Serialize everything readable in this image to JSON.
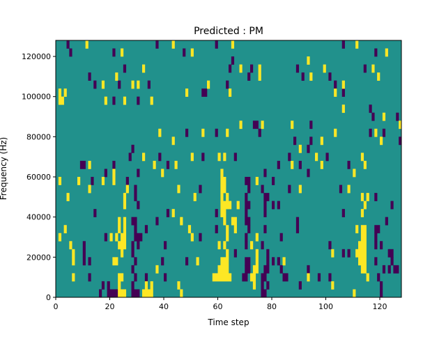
{
  "chart_data": {
    "type": "heatmap",
    "title": "Predicted : PM",
    "xlabel": "Time step",
    "ylabel": "Frequency (Hz)",
    "xlim": [
      0,
      128
    ],
    "ylim": [
      0,
      128000
    ],
    "x_ticks": [
      0,
      20,
      40,
      60,
      80,
      100,
      120
    ],
    "y_ticks": [
      0,
      20000,
      40000,
      60000,
      80000,
      100000,
      120000
    ],
    "y_tick_labels": [
      "0",
      "20000",
      "40000",
      "60000",
      "80000",
      "100000",
      "120000"
    ],
    "n_time_steps": 128,
    "n_freq_bins": 32,
    "freq_bin_hz": 4000,
    "colors": {
      "low": "#440154",
      "mid": "#21918c",
      "high": "#fde725"
    },
    "default_level": "mid",
    "note": "cells listed per frequency bin (row 0 = lowest) as [first_step, last_step] runs",
    "low_cells": [
      [
        [
          16,
          16
        ],
        [
          19,
          22
        ],
        [
          28,
          30
        ],
        [
          76,
          77
        ],
        [
          120,
          120
        ]
      ],
      [
        [
          17,
          17
        ],
        [
          19,
          19
        ],
        [
          28,
          28
        ],
        [
          76,
          76
        ],
        [
          78,
          78
        ],
        [
          90,
          90
        ],
        [
          120,
          120
        ]
      ],
      [
        [
          12,
          12
        ],
        [
          29,
          29
        ],
        [
          33,
          33
        ],
        [
          40,
          40
        ],
        [
          69,
          70
        ],
        [
          76,
          77
        ],
        [
          84,
          85
        ],
        [
          97,
          97
        ],
        [
          101,
          101
        ],
        [
          119,
          119
        ]
      ],
      [
        [
          28,
          28
        ],
        [
          70,
          71
        ],
        [
          77,
          78
        ],
        [
          83,
          83
        ],
        [
          93,
          93
        ],
        [
          121,
          121
        ],
        [
          123,
          123
        ],
        [
          125,
          126
        ]
      ],
      [
        [
          10,
          10
        ],
        [
          12,
          12
        ],
        [
          29,
          29
        ],
        [
          39,
          39
        ],
        [
          48,
          48
        ],
        [
          70,
          71
        ],
        [
          78,
          78
        ],
        [
          80,
          80
        ],
        [
          82,
          82
        ],
        [
          118,
          118
        ],
        [
          124,
          124
        ]
      ],
      [
        [
          10,
          10
        ],
        [
          28,
          28
        ],
        [
          66,
          66
        ],
        [
          78,
          78
        ],
        [
          106,
          106
        ],
        [
          108,
          108
        ],
        [
          123,
          124
        ]
      ],
      [
        [
          10,
          10
        ],
        [
          28,
          28
        ],
        [
          30,
          30
        ],
        [
          40,
          40
        ],
        [
          70,
          70
        ],
        [
          76,
          76
        ],
        [
          101,
          101
        ],
        [
          118,
          118
        ],
        [
          120,
          120
        ]
      ],
      [
        [
          18,
          18
        ],
        [
          29,
          31
        ],
        [
          53,
          53
        ],
        [
          70,
          70
        ],
        [
          83,
          83
        ],
        [
          118,
          118
        ]
      ],
      [
        [
          29,
          29
        ],
        [
          33,
          33
        ],
        [
          59,
          59
        ],
        [
          71,
          71
        ],
        [
          77,
          77
        ],
        [
          89,
          89
        ],
        [
          118,
          119
        ]
      ],
      [
        [
          28,
          29
        ],
        [
          37,
          37
        ],
        [
          70,
          71
        ],
        [
          89,
          89
        ],
        [
          122,
          122
        ]
      ],
      [
        [
          14,
          14
        ],
        [
          41,
          41
        ],
        [
          59,
          59
        ],
        [
          70,
          70
        ],
        [
          77,
          77
        ],
        [
          106,
          106
        ]
      ],
      [
        [
          30,
          30
        ],
        [
          70,
          71
        ],
        [
          77,
          77
        ],
        [
          80,
          80
        ],
        [
          82,
          82
        ],
        [
          124,
          124
        ]
      ],
      [
        [
          29,
          29
        ],
        [
          70,
          70
        ],
        [
          77,
          78
        ],
        [
          118,
          118
        ]
      ],
      [
        [
          29,
          29
        ],
        [
          53,
          53
        ],
        [
          71,
          71
        ],
        [
          76,
          76
        ],
        [
          86,
          86
        ],
        [
          105,
          105
        ]
      ],
      [
        [
          13,
          13
        ],
        [
          26,
          26
        ],
        [
          70,
          71
        ],
        [
          80,
          80
        ]
      ],
      [
        [
          18,
          18
        ],
        [
          30,
          30
        ],
        [
          77,
          77
        ],
        [
          93,
          93
        ]
      ],
      [
        [
          9,
          10
        ],
        [
          21,
          21
        ],
        [
          41,
          41
        ],
        [
          82,
          82
        ],
        [
          90,
          90
        ],
        [
          108,
          108
        ]
      ],
      [
        [
          27,
          27
        ],
        [
          38,
          38
        ],
        [
          54,
          54
        ],
        [
          66,
          66
        ],
        [
          86,
          86
        ],
        [
          100,
          100
        ]
      ],
      [
        [
          28,
          28
        ],
        [
          93,
          93
        ]
      ],
      [
        [
          88,
          88
        ],
        [
          94,
          94
        ],
        [
          127,
          127
        ]
      ],
      [
        [
          48,
          48
        ],
        [
          59,
          59
        ],
        [
          75,
          75
        ],
        [
          116,
          116
        ],
        [
          121,
          121
        ]
      ],
      [
        [
          73,
          74
        ],
        [
          94,
          94
        ]
      ],
      [
        [
          117,
          117
        ],
        [
          126,
          126
        ]
      ],
      [
        [
          116,
          116
        ]
      ],
      [
        [
          21,
          21
        ],
        [
          30,
          30
        ]
      ],
      [
        [
          54,
          55
        ],
        [
          106,
          106
        ]
      ],
      [
        [
          14,
          14
        ],
        [
          23,
          23
        ],
        [
          34,
          34
        ],
        [
          63,
          63
        ],
        [
          103,
          103
        ]
      ],
      [
        [
          12,
          12
        ],
        [
          71,
          71
        ],
        [
          91,
          91
        ],
        [
          101,
          101
        ]
      ],
      [
        [
          25,
          25
        ],
        [
          64,
          64
        ],
        [
          72,
          72
        ],
        [
          89,
          89
        ],
        [
          114,
          114
        ]
      ],
      [
        [
          65,
          65
        ]
      ],
      [
        [
          5,
          5
        ],
        [
          21,
          21
        ],
        [
          47,
          47
        ],
        [
          118,
          118
        ]
      ],
      [
        [
          4,
          4
        ],
        [
          37,
          37
        ],
        [
          59,
          59
        ],
        [
          106,
          106
        ]
      ]
    ],
    "high_cells": [
      [
        [
          23,
          25
        ],
        [
          32,
          35
        ],
        [
          46,
          46
        ],
        [
          110,
          110
        ]
      ],
      [
        [
          23,
          23
        ],
        [
          33,
          33
        ],
        [
          35,
          35
        ],
        [
          45,
          45
        ],
        [
          73,
          73
        ],
        [
          102,
          102
        ]
      ],
      [
        [
          6,
          6
        ],
        [
          23,
          24
        ],
        [
          58,
          64
        ],
        [
          72,
          73
        ],
        [
          93,
          93
        ],
        [
          115,
          115
        ]
      ],
      [
        [
          37,
          37
        ],
        [
          60,
          63
        ],
        [
          73,
          74
        ],
        [
          113,
          114
        ]
      ],
      [
        [
          6,
          6
        ],
        [
          21,
          22
        ],
        [
          52,
          52
        ],
        [
          61,
          63
        ],
        [
          74,
          74
        ],
        [
          84,
          84
        ],
        [
          112,
          114
        ]
      ],
      [
        [
          6,
          6
        ],
        [
          24,
          24
        ],
        [
          63,
          63
        ],
        [
          74,
          74
        ],
        [
          102,
          102
        ],
        [
          111,
          114
        ]
      ],
      [
        [
          5,
          5
        ],
        [
          23,
          25
        ],
        [
          60,
          60
        ],
        [
          62,
          62
        ],
        [
          72,
          72
        ],
        [
          112,
          114
        ]
      ],
      [
        [
          1,
          1
        ],
        [
          20,
          20
        ],
        [
          22,
          22
        ],
        [
          24,
          25
        ],
        [
          50,
          50
        ],
        [
          63,
          63
        ],
        [
          74,
          74
        ],
        [
          113,
          114
        ]
      ],
      [
        [
          3,
          3
        ],
        [
          23,
          23
        ],
        [
          25,
          25
        ],
        [
          49,
          49
        ],
        [
          63,
          63
        ],
        [
          66,
          66
        ],
        [
          111,
          111
        ],
        [
          113,
          114
        ]
      ],
      [
        [
          23,
          23
        ],
        [
          25,
          25
        ],
        [
          46,
          46
        ],
        [
          62,
          62
        ],
        [
          65,
          66
        ]
      ],
      [
        [
          43,
          43
        ],
        [
          61,
          62
        ],
        [
          113,
          113
        ]
      ],
      [
        [
          25,
          25
        ],
        [
          61,
          64
        ],
        [
          67,
          67
        ],
        [
          114,
          114
        ]
      ],
      [
        [
          4,
          4
        ],
        [
          25,
          25
        ],
        [
          51,
          51
        ],
        [
          61,
          61
        ],
        [
          63,
          63
        ],
        [
          113,
          113
        ],
        [
          115,
          115
        ]
      ],
      [
        [
          12,
          12
        ],
        [
          26,
          26
        ],
        [
          45,
          45
        ],
        [
          61,
          62
        ],
        [
          90,
          90
        ],
        [
          108,
          108
        ]
      ],
      [
        [
          1,
          1
        ],
        [
          8,
          8
        ],
        [
          17,
          17
        ],
        [
          21,
          21
        ],
        [
          61,
          62
        ],
        [
          74,
          74
        ]
      ],
      [
        [
          21,
          21
        ],
        [
          39,
          39
        ],
        [
          61,
          61
        ],
        [
          110,
          110
        ]
      ],
      [
        [
          12,
          12
        ],
        [
          36,
          36
        ],
        [
          44,
          44
        ],
        [
          87,
          87
        ],
        [
          98,
          98
        ],
        [
          114,
          114
        ]
      ],
      [
        [
          32,
          32
        ],
        [
          50,
          50
        ],
        [
          60,
          60
        ],
        [
          62,
          62
        ],
        [
          96,
          96
        ],
        [
          113,
          113
        ]
      ],
      [
        [
          90,
          90
        ]
      ],
      [
        [
          43,
          43
        ],
        [
          98,
          98
        ],
        [
          120,
          120
        ]
      ],
      [
        [
          38,
          38
        ],
        [
          54,
          54
        ],
        [
          63,
          63
        ],
        [
          103,
          103
        ],
        [
          118,
          118
        ]
      ],
      [
        [
          68,
          68
        ],
        [
          76,
          76
        ],
        [
          87,
          87
        ],
        [
          127,
          127
        ]
      ],
      [
        [
          121,
          121
        ]
      ],
      [
        [
          106,
          106
        ]
      ],
      [
        [
          1,
          2
        ],
        [
          18,
          18
        ],
        [
          25,
          25
        ],
        [
          35,
          35
        ]
      ],
      [
        [
          1,
          1
        ],
        [
          3,
          3
        ],
        [
          48,
          48
        ],
        [
          64,
          64
        ],
        [
          103,
          103
        ]
      ],
      [
        [
          17,
          17
        ],
        [
          28,
          28
        ],
        [
          30,
          30
        ],
        [
          56,
          56
        ],
        [
          106,
          106
        ]
      ],
      [
        [
          22,
          22
        ],
        [
          75,
          75
        ],
        [
          94,
          94
        ],
        [
          119,
          119
        ]
      ],
      [
        [
          32,
          32
        ],
        [
          68,
          68
        ],
        [
          75,
          75
        ],
        [
          99,
          99
        ],
        [
          117,
          117
        ]
      ],
      [
        [
          93,
          93
        ]
      ],
      [
        [
          24,
          24
        ],
        [
          50,
          50
        ],
        [
          122,
          122
        ]
      ],
      [
        [
          11,
          11
        ],
        [
          43,
          43
        ],
        [
          65,
          65
        ],
        [
          111,
          111
        ]
      ]
    ]
  }
}
